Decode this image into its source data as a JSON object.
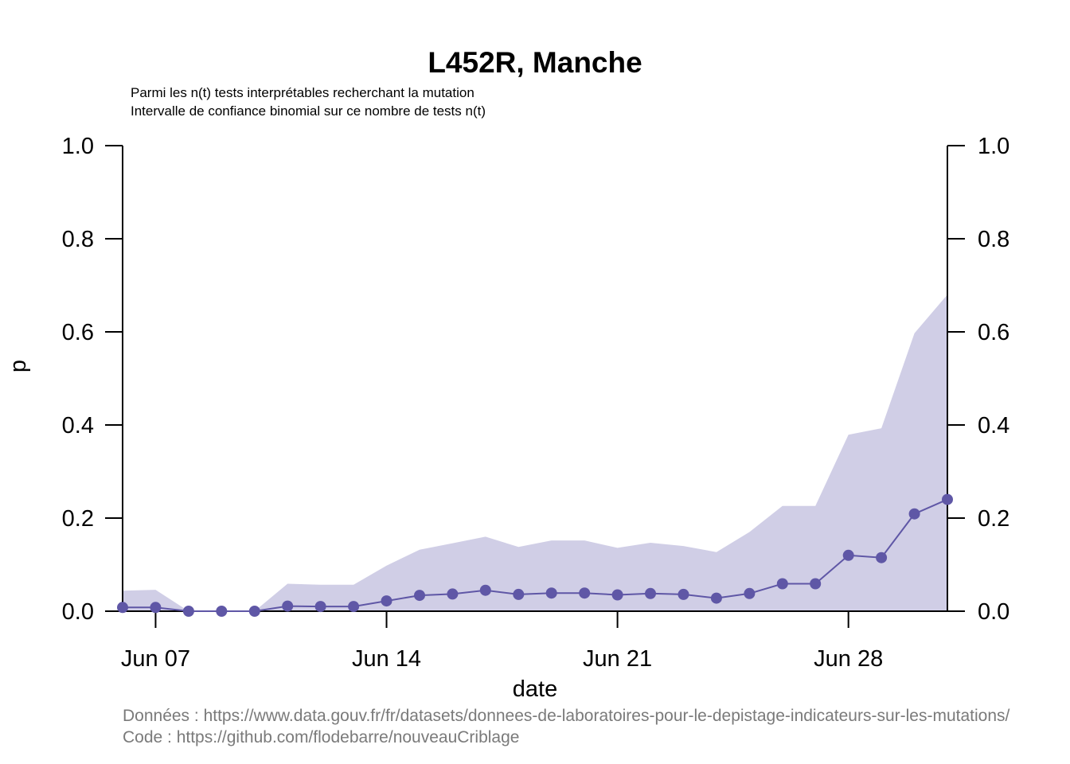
{
  "colors": {
    "line": "#5f57a6",
    "band": "#d0cee6",
    "axis": "#000000",
    "footer_text": "#7a7a7a"
  },
  "chart_data": {
    "type": "line",
    "title": "L452R, Manche",
    "subtitle_lines": [
      "Parmi les n(t) tests interprétables recherchant la mutation",
      "Intervalle de confiance binomial sur ce nombre de tests n(t)"
    ],
    "xlabel": "date",
    "ylabel": "p",
    "ylim": [
      0,
      1
    ],
    "y_ticks": [
      "0.0",
      "0.2",
      "0.4",
      "0.6",
      "0.8",
      "1.0"
    ],
    "x_ticks": [
      {
        "date": "2021-06-07",
        "label": "Jun 07"
      },
      {
        "date": "2021-06-14",
        "label": "Jun 14"
      },
      {
        "date": "2021-06-21",
        "label": "Jun 21"
      },
      {
        "date": "2021-06-28",
        "label": "Jun 28"
      }
    ],
    "x_range": [
      "2021-06-06",
      "2021-07-01"
    ],
    "right_axis": true,
    "grid": false,
    "series": [
      {
        "x": [
          "2021-06-06",
          "2021-06-07",
          "2021-06-08",
          "2021-06-09",
          "2021-06-10",
          "2021-06-11",
          "2021-06-12",
          "2021-06-13",
          "2021-06-14",
          "2021-06-15",
          "2021-06-16",
          "2021-06-17",
          "2021-06-18",
          "2021-06-19",
          "2021-06-20",
          "2021-06-21",
          "2021-06-22",
          "2021-06-23",
          "2021-06-24",
          "2021-06-25",
          "2021-06-26",
          "2021-06-27",
          "2021-06-28",
          "2021-06-29",
          "2021-06-30",
          "2021-07-01"
        ],
        "values": [
          0.008,
          0.008,
          0.0,
          0.0,
          0.0,
          0.011,
          0.01,
          0.01,
          0.022,
          0.034,
          0.037,
          0.045,
          0.036,
          0.039,
          0.039,
          0.035,
          0.038,
          0.036,
          0.028,
          0.038,
          0.059,
          0.059,
          0.12,
          0.115,
          0.209,
          0.24
        ],
        "ci_lower": [
          0,
          0,
          0,
          0,
          0,
          0,
          0,
          0,
          0,
          0,
          0,
          0,
          0,
          0,
          0,
          0,
          0,
          0,
          0,
          0,
          0,
          0,
          0,
          0,
          0,
          0
        ],
        "ci_upper": [
          0.044,
          0.046,
          0.0,
          0.0,
          0.0,
          0.059,
          0.057,
          0.057,
          0.098,
          0.132,
          0.146,
          0.16,
          0.138,
          0.152,
          0.152,
          0.136,
          0.147,
          0.14,
          0.127,
          0.17,
          0.226,
          0.226,
          0.379,
          0.393,
          0.597,
          0.68
        ]
      }
    ]
  },
  "footer": {
    "data_source": "Données : https://www.data.gouv.fr/fr/datasets/donnees-de-laboratoires-pour-le-depistage-indicateurs-sur-les-mutations/",
    "code_source": "Code : https://github.com/flodebarre/nouveauCriblage"
  }
}
